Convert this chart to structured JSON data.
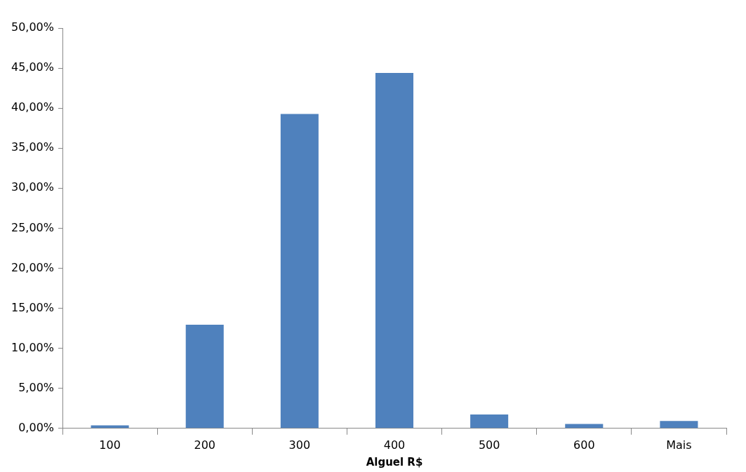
{
  "chart_data": {
    "type": "bar",
    "xlabel": "Alguel R$",
    "categories": [
      "100",
      "200",
      "300",
      "400",
      "500",
      "600",
      "Mais"
    ],
    "values": [
      0.37,
      12.94,
      39.27,
      44.4,
      1.74,
      0.55,
      0.92
    ],
    "color": "#4f81bd",
    "ylim": [
      0,
      50
    ],
    "yticks": [
      {
        "value": 0,
        "label": "0,00%"
      },
      {
        "value": 5,
        "label": "5,00%"
      },
      {
        "value": 10,
        "label": "10,00%"
      },
      {
        "value": 15,
        "label": "15,00%"
      },
      {
        "value": 20,
        "label": "20,00%"
      },
      {
        "value": 25,
        "label": "25,00%"
      },
      {
        "value": 30,
        "label": "30,00%"
      },
      {
        "value": 35,
        "label": "35,00%"
      },
      {
        "value": 40,
        "label": "40,00%"
      },
      {
        "value": 45,
        "label": "45,00%"
      },
      {
        "value": 50,
        "label": "50,00%"
      }
    ],
    "grid": false,
    "legend": false
  }
}
